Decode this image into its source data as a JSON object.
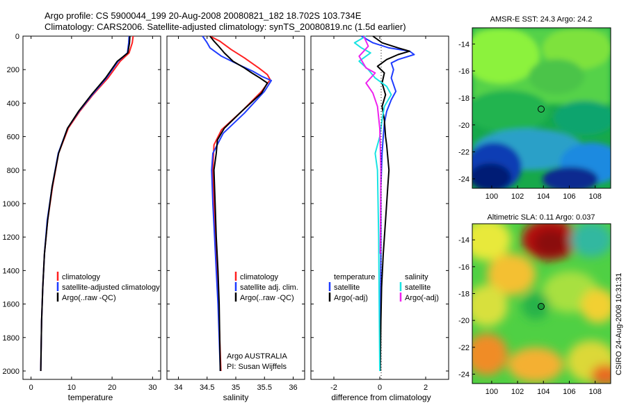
{
  "header": {
    "line1": "Argo profile: CS 5900044_199 20-Aug-2008 20080821_182 18.702S 103.734E",
    "line2": "Climatology: CARS2006. Satellite-adjusted climatology: synTS_20080819.nc (1.5d earlier)"
  },
  "colors": {
    "red": "#ff2020",
    "blue": "#1f3cff",
    "black": "#000000",
    "cyan": "#19e3e3",
    "magenta": "#ee22ee"
  },
  "depth_axis": {
    "ylim": [
      0,
      2050
    ],
    "ticks": [
      "0",
      "200",
      "400",
      "600",
      "800",
      "1000",
      "1200",
      "1400",
      "1600",
      "1800",
      "2000"
    ]
  },
  "chart_data": [
    {
      "type": "line",
      "name": "temperature-panel",
      "xlabel": "temperature",
      "xlim": [
        -2,
        32
      ],
      "xticks": [
        "0",
        "10",
        "20",
        "30"
      ],
      "legend": [
        "climatology",
        "satellite-adjusted climatology",
        "Argo(..raw -QC)"
      ],
      "series": [
        {
          "name": "climatology",
          "color": "red",
          "x": [
            25.2,
            25,
            24.2,
            22,
            19,
            15.3,
            12,
            9.2,
            6.8,
            5.3,
            4.1,
            3.3,
            2.9,
            2.6,
            2.4
          ],
          "depth": [
            0,
            40,
            100,
            150,
            250,
            350,
            450,
            550,
            700,
            900,
            1100,
            1300,
            1500,
            1700,
            2000
          ]
        },
        {
          "name": "satellite-adjusted climatology",
          "color": "blue",
          "x": [
            24.2,
            24.1,
            23.8,
            21.5,
            18.6,
            15.1,
            11.8,
            9,
            6.7,
            5.2,
            4,
            3.3,
            2.9,
            2.6,
            2.4
          ],
          "depth": [
            0,
            40,
            100,
            150,
            250,
            350,
            450,
            550,
            700,
            900,
            1100,
            1300,
            1500,
            1700,
            2000
          ]
        },
        {
          "name": "Argo",
          "color": "black",
          "x": [
            24.4,
            24.3,
            23.9,
            21.3,
            18.4,
            14.9,
            11.7,
            9,
            6.8,
            5.2,
            4.1,
            3.3,
            2.9,
            2.6,
            2.4
          ],
          "depth": [
            0,
            40,
            100,
            150,
            250,
            350,
            450,
            550,
            700,
            900,
            1100,
            1300,
            1500,
            1700,
            2000
          ]
        }
      ]
    },
    {
      "type": "line",
      "name": "salinity-panel",
      "xlabel": "salinity",
      "xlim": [
        33.8,
        36.2
      ],
      "xticks": [
        "34",
        "34.5",
        "35",
        "35.5",
        "36"
      ],
      "legend": [
        "climatology",
        "satellite adj. clim.",
        "Argo(..raw -QC)"
      ],
      "annotation": [
        "Argo AUSTRALIA",
        "PI: Susan Wijffels"
      ],
      "series": [
        {
          "name": "climatology",
          "color": "red",
          "x": [
            34.55,
            34.72,
            34.92,
            35.15,
            35.4,
            35.55,
            35.6,
            35.45,
            35.1,
            34.75,
            34.62,
            34.6,
            34.62,
            34.65,
            34.68,
            34.7,
            34.72,
            34.74
          ],
          "depth": [
            0,
            30,
            80,
            130,
            190,
            230,
            260,
            330,
            450,
            560,
            650,
            800,
            1000,
            1200,
            1400,
            1600,
            1800,
            2000
          ]
        },
        {
          "name": "satellite adj. clim.",
          "color": "blue",
          "x": [
            34.42,
            34.5,
            34.55,
            34.75,
            35.05,
            35.3,
            35.45,
            35.62,
            35.5,
            35.15,
            34.78,
            34.6,
            34.58,
            34.6,
            34.63,
            34.66,
            34.69,
            34.71,
            34.73
          ],
          "depth": [
            0,
            40,
            70,
            120,
            170,
            210,
            240,
            265,
            330,
            460,
            580,
            700,
            800,
            1000,
            1200,
            1400,
            1600,
            1800,
            2000
          ]
        },
        {
          "name": "Argo",
          "color": "black",
          "x": [
            34.55,
            34.62,
            34.7,
            34.8,
            34.95,
            35.15,
            35.28,
            35.42,
            35.55,
            35.45,
            35.1,
            34.8,
            34.68,
            34.66,
            34.62,
            34.64,
            34.66,
            34.69,
            34.71,
            34.73
          ],
          "depth": [
            0,
            30,
            60,
            100,
            150,
            190,
            220,
            250,
            280,
            340,
            450,
            550,
            620,
            700,
            800,
            1000,
            1200,
            1400,
            1600,
            2000
          ]
        }
      ]
    },
    {
      "type": "line",
      "name": "difference-panel",
      "xlabel": "difference from climatology",
      "xlim": [
        -3,
        3
      ],
      "xticks": [
        "-2",
        "0",
        "2"
      ],
      "legend_left": [
        "temperature",
        "satellite",
        "Argo(-adj)"
      ],
      "legend_right": [
        "salinity",
        "satellite",
        "Argo(-adj)"
      ],
      "series": [
        {
          "name": "temperature satellite",
          "color": "blue",
          "x": [
            -0.8,
            -0.3,
            0.4,
            1.3,
            1.5,
            0.8,
            0.5,
            0.6,
            0.5,
            0.7,
            0.5,
            0.3,
            0.2,
            0.15,
            0.1,
            0.05,
            0.05,
            0.03,
            0
          ],
          "depth": [
            0,
            40,
            70,
            90,
            110,
            140,
            160,
            200,
            250,
            330,
            380,
            450,
            520,
            600,
            700,
            900,
            1300,
            1700,
            2000
          ]
        },
        {
          "name": "temperature Argo",
          "color": "black",
          "x": [
            -0.3,
            0.1,
            0.8,
            1.3,
            0.8,
            0.3,
            -0.1,
            0.2,
            0.1,
            0.25,
            0.1,
            0.2,
            0.25,
            0.3,
            0.4,
            0.35,
            0.25,
            0.15,
            0.08,
            0.05,
            0.02
          ],
          "depth": [
            0,
            40,
            70,
            90,
            110,
            140,
            180,
            220,
            280,
            350,
            420,
            500,
            600,
            650,
            800,
            900,
            1100,
            1300,
            1500,
            1700,
            2000
          ]
        },
        {
          "name": "salinity satellite",
          "color": "cyan",
          "x": [
            -0.6,
            -1.1,
            -0.8,
            -0.4,
            -0.9,
            -0.5,
            -0.2,
            0.3,
            0.5,
            0.2,
            0.1,
            0,
            -0.2,
            -0.1,
            -0.05,
            0
          ],
          "depth": [
            0,
            40,
            70,
            100,
            150,
            200,
            250,
            300,
            350,
            420,
            500,
            600,
            700,
            800,
            1200,
            2000
          ]
        },
        {
          "name": "salinity Argo",
          "color": "magenta",
          "x": [
            -0.7,
            -0.5,
            -0.9,
            -0.6,
            -0.2,
            -0.6,
            -0.3,
            -0.1,
            0,
            0.05,
            0.02
          ],
          "depth": [
            0,
            60,
            120,
            190,
            220,
            280,
            340,
            420,
            550,
            800,
            1300
          ]
        }
      ]
    }
  ],
  "maps": [
    {
      "title": "AMSR-E SST: 24.3 Argo: 24.2",
      "xticks": [
        "100",
        "102",
        "104",
        "106",
        "108"
      ],
      "yticks": [
        "-14",
        "-16",
        "-18",
        "-20",
        "-22",
        "-24"
      ],
      "xlim": [
        98.5,
        109.2
      ],
      "ylim": [
        -24.7,
        -12.8
      ],
      "float_lon": 103.734,
      "float_lat": -18.702
    },
    {
      "title": "Altimetric SLA: 0.11 Argo: 0.037",
      "xticks": [
        "100",
        "102",
        "104",
        "106",
        "108"
      ],
      "yticks": [
        "-14",
        "-16",
        "-18",
        "-20",
        "-22",
        "-24"
      ],
      "xlim": [
        98.5,
        109.2
      ],
      "ylim": [
        -24.7,
        -12.8
      ],
      "float_lon": 103.734,
      "float_lat": -18.702
    }
  ],
  "side_label": "CSIRO 24-Aug-2008 10:31:31"
}
